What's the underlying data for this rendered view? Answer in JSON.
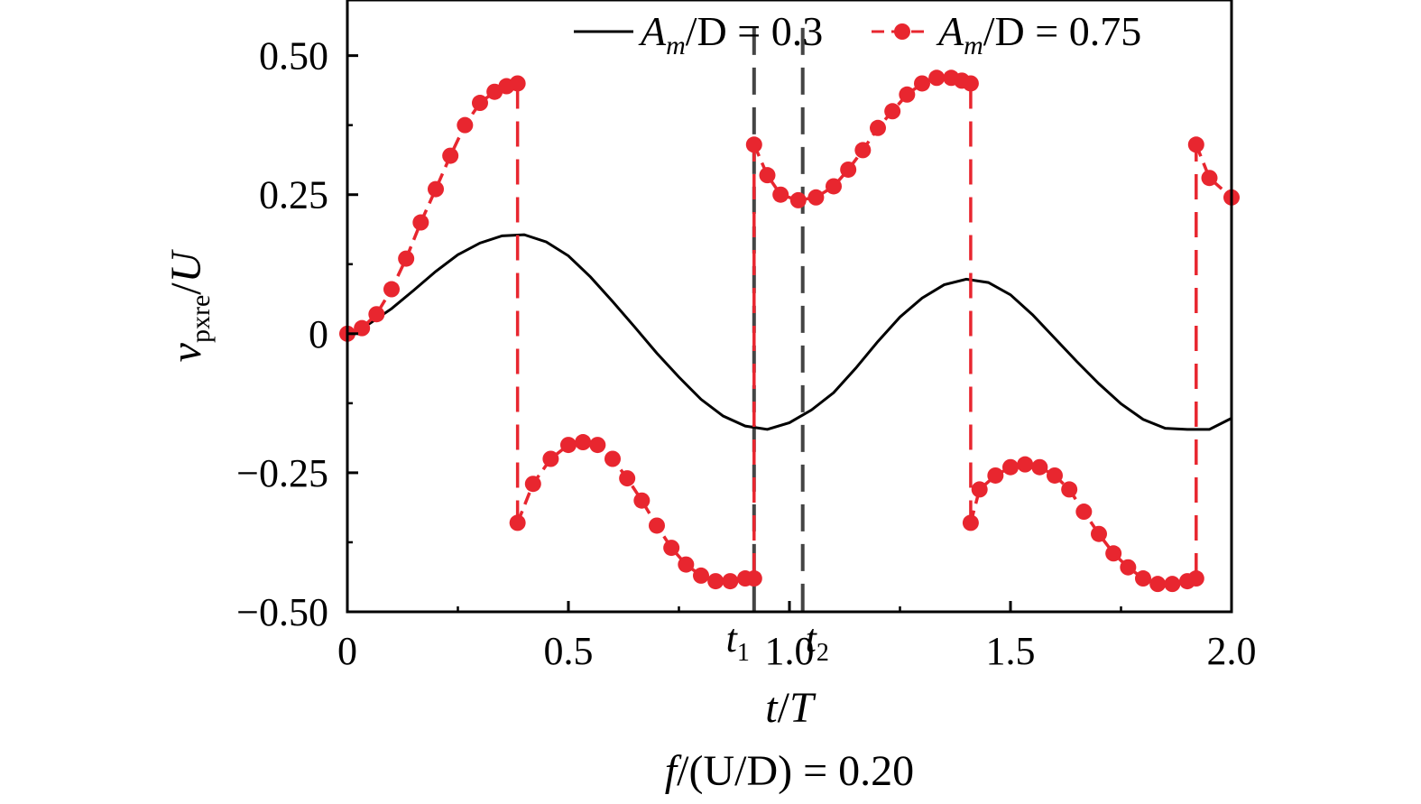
{
  "chart_data": {
    "type": "line",
    "xlabel": {
      "var": "t",
      "slash": "/",
      "den": "T"
    },
    "ylabel": {
      "var": "v",
      "sub": "pxre",
      "slash": "/",
      "den": "U"
    },
    "caption": {
      "var": "f",
      "rest": "/(U/D) = 0.20"
    },
    "xlim": [
      0,
      2.0
    ],
    "ylim": [
      -0.5,
      0.6
    ],
    "xticks": [
      {
        "v": 0,
        "label": "0"
      },
      {
        "v": 0.5,
        "label": "0.5"
      },
      {
        "v": 1.0,
        "label": "1.0"
      },
      {
        "v": 1.5,
        "label": "1.5"
      },
      {
        "v": 2.0,
        "label": "2.0"
      }
    ],
    "yticks": [
      {
        "v": 0.5,
        "label": "0.50"
      },
      {
        "v": 0.25,
        "label": "0.25"
      },
      {
        "v": 0,
        "label": "0"
      },
      {
        "v": -0.25,
        "label": "−0.25"
      },
      {
        "v": -0.5,
        "label": "−0.50"
      }
    ],
    "legend": {
      "placement": "top",
      "entries": [
        {
          "prefix": "A",
          "sub": "m",
          "suffix": "/D = 0.3"
        },
        {
          "prefix": "A",
          "sub": "m",
          "suffix": "/D = 0.75"
        }
      ]
    },
    "markers": [
      {
        "name": "t1",
        "t": 0.92,
        "label": "t",
        "sub": "1"
      },
      {
        "name": "t2",
        "t": 1.03,
        "label": "t",
        "sub": "2"
      }
    ],
    "colors": {
      "series_small": "#000000",
      "series_large": "#e8262f",
      "marker": "#444444"
    },
    "series": [
      {
        "style": "solid-line",
        "x": [
          0,
          0.05,
          0.1,
          0.15,
          0.2,
          0.25,
          0.3,
          0.35,
          0.4,
          0.45,
          0.5,
          0.55,
          0.6,
          0.65,
          0.7,
          0.75,
          0.8,
          0.85,
          0.9,
          0.95,
          1.0,
          1.05,
          1.1,
          1.15,
          1.2,
          1.25,
          1.3,
          1.35,
          1.4,
          1.45,
          1.5,
          1.55,
          1.6,
          1.65,
          1.7,
          1.75,
          1.8,
          1.85,
          1.9,
          1.95,
          2.0
        ],
        "y": [
          0,
          0.018,
          0.045,
          0.078,
          0.112,
          0.142,
          0.163,
          0.176,
          0.178,
          0.165,
          0.14,
          0.102,
          0.058,
          0.012,
          -0.035,
          -0.078,
          -0.118,
          -0.148,
          -0.166,
          -0.172,
          -0.16,
          -0.137,
          -0.106,
          -0.062,
          -0.014,
          0.03,
          0.064,
          0.088,
          0.098,
          0.092,
          0.07,
          0.034,
          -0.008,
          -0.05,
          -0.09,
          -0.126,
          -0.154,
          -0.17,
          -0.172,
          -0.172,
          -0.152
        ]
      },
      {
        "style": "dashed-markers",
        "segments": [
          {
            "x": [
              0,
              0.033,
              0.066,
              0.1,
              0.133,
              0.166,
              0.2,
              0.233,
              0.266,
              0.3,
              0.333,
              0.36,
              0.385
            ],
            "y": [
              0,
              0.01,
              0.035,
              0.08,
              0.135,
              0.2,
              0.26,
              0.32,
              0.375,
              0.415,
              0.435,
              0.445,
              0.45
            ]
          },
          {
            "x": [
              0.385,
              0.42,
              0.46,
              0.5,
              0.533,
              0.566,
              0.6,
              0.633,
              0.666,
              0.7,
              0.733,
              0.766,
              0.8,
              0.833,
              0.866,
              0.9,
              0.92
            ],
            "y": [
              -0.34,
              -0.27,
              -0.225,
              -0.2,
              -0.195,
              -0.2,
              -0.225,
              -0.26,
              -0.3,
              -0.345,
              -0.385,
              -0.415,
              -0.435,
              -0.445,
              -0.445,
              -0.44,
              -0.44
            ]
          },
          {
            "x": [
              0.92,
              0.95,
              0.98,
              1.02,
              1.06,
              1.1,
              1.133,
              1.166,
              1.2,
              1.233,
              1.266,
              1.3,
              1.333,
              1.366,
              1.39,
              1.41
            ],
            "y": [
              0.34,
              0.285,
              0.25,
              0.24,
              0.245,
              0.265,
              0.295,
              0.33,
              0.37,
              0.4,
              0.43,
              0.45,
              0.46,
              0.46,
              0.455,
              0.45
            ]
          },
          {
            "x": [
              1.41,
              1.43,
              1.466,
              1.5,
              1.533,
              1.566,
              1.6,
              1.633,
              1.666,
              1.7,
              1.733,
              1.766,
              1.8,
              1.833,
              1.866,
              1.9,
              1.92
            ],
            "y": [
              -0.34,
              -0.28,
              -0.255,
              -0.24,
              -0.235,
              -0.24,
              -0.255,
              -0.28,
              -0.32,
              -0.36,
              -0.395,
              -0.42,
              -0.44,
              -0.45,
              -0.45,
              -0.445,
              -0.44
            ]
          },
          {
            "x": [
              1.92,
              1.95,
              2.0
            ],
            "y": [
              0.34,
              0.28,
              0.245
            ]
          }
        ]
      }
    ]
  }
}
